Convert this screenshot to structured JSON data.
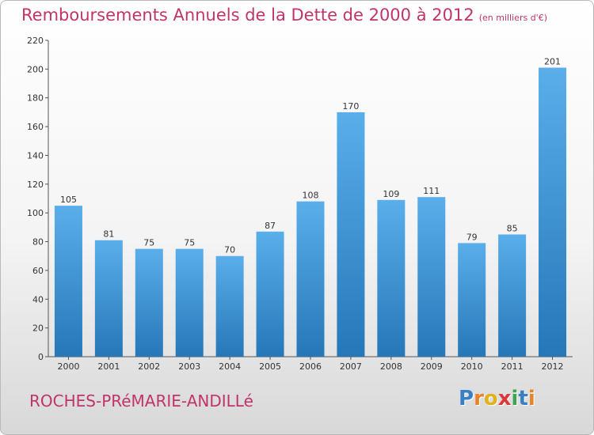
{
  "header": {
    "title": "Remboursements Annuels de la Dette de 2000 à 2012",
    "unit": "(en milliers d'€)"
  },
  "footer": {
    "commune": "ROCHES-PRéMARIE-ANDILLé",
    "logo_letters": [
      "P",
      "r",
      "o",
      "x",
      "i",
      "t",
      "i"
    ],
    "logo_colors": [
      "#3a7fc4",
      "#e8832a",
      "#e0b21f",
      "#d9393a",
      "#3fa34d",
      "#3a7fc4",
      "#e8832a"
    ]
  },
  "chart_data": {
    "type": "bar",
    "categories": [
      "2000",
      "2001",
      "2002",
      "2003",
      "2004",
      "2005",
      "2006",
      "2007",
      "2008",
      "2009",
      "2010",
      "2011",
      "2012"
    ],
    "values": [
      105,
      81,
      75,
      75,
      70,
      87,
      108,
      170,
      109,
      111,
      79,
      85,
      201
    ],
    "data_labels": [
      "105",
      "81",
      "75",
      "75",
      "70",
      "87",
      "108",
      "170",
      "109",
      "111",
      "79",
      "85",
      "201"
    ],
    "y_ticks": [
      "0",
      "20",
      "40",
      "60",
      "80",
      "100",
      "120",
      "140",
      "160",
      "180",
      "200",
      "220"
    ],
    "ylim": [
      0,
      220
    ],
    "grid": false,
    "legend": "none",
    "bar_color_top": "#5aaeea",
    "bar_color_bottom": "#2677b8"
  }
}
